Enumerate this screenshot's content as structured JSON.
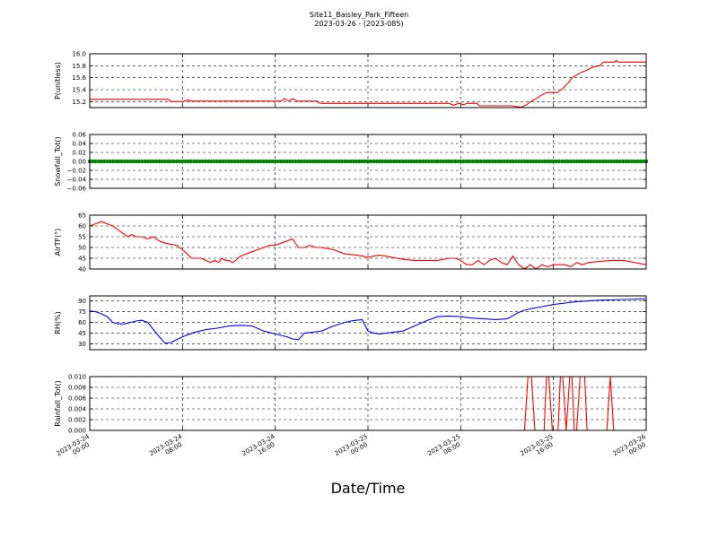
{
  "chart_data": {
    "title": "Site11_Baisley_Park_Fifteen",
    "subtitle": "2023-03-26 - (2023-085)",
    "xlabel": "Date/Time",
    "type": "line",
    "x_range": [
      "2023-03-24 00:00",
      "2023-03-26 00:00"
    ],
    "x_ticks": [
      {
        "line1": "2023-03-24",
        "line2": "00:00"
      },
      {
        "line1": "2023-03-24",
        "line2": "08:00"
      },
      {
        "line1": "2023-03-24",
        "line2": "16:00"
      },
      {
        "line1": "2023-03-25",
        "line2": "00:00"
      },
      {
        "line1": "2023-03-25",
        "line2": "08:00"
      },
      {
        "line1": "2023-03-25",
        "line2": "16:00"
      },
      {
        "line1": "2023-03-26",
        "line2": "00:00"
      }
    ],
    "x_tick_hours": [
      0,
      8,
      16,
      24,
      32,
      40,
      48
    ],
    "grid": true,
    "panels": [
      {
        "ylabel": "P(unitless)",
        "ylim": [
          15.1,
          16.0
        ],
        "yticks": [
          15.2,
          15.4,
          15.6,
          15.8,
          16.0
        ],
        "yticklabels": [
          "15.2",
          "15.4",
          "15.6",
          "15.8",
          "16.0"
        ],
        "color": "#ff0000",
        "markers": false,
        "x": [
          0,
          6.8,
          7.0,
          8.0,
          8.5,
          8.6,
          9.0,
          13.3,
          16.5,
          16.8,
          17.2,
          17.5,
          17.9,
          18.4,
          19.6,
          19.7,
          20.0,
          24.0,
          31.0,
          31.4,
          31.8,
          32.3,
          32.5,
          32.9,
          33.4,
          33.6,
          36.4,
          37.1,
          37.3,
          37.6,
          37.9,
          38.2,
          38.6,
          38.8,
          39.1,
          39.4,
          39.8,
          40.3,
          40.8,
          41.3,
          41.6,
          42.3,
          42.8,
          43.1,
          43.4,
          44.0,
          44.3,
          44.8,
          45.3,
          45.4,
          45.6,
          46.8,
          48.0
        ],
        "values": [
          15.24,
          15.24,
          15.2,
          15.2,
          15.23,
          15.21,
          15.21,
          15.21,
          15.21,
          15.25,
          15.21,
          15.25,
          15.21,
          15.21,
          15.21,
          15.18,
          15.17,
          15.17,
          15.17,
          15.14,
          15.17,
          15.15,
          15.17,
          15.17,
          15.17,
          15.13,
          15.13,
          15.11,
          15.11,
          15.14,
          15.18,
          15.22,
          15.26,
          15.29,
          15.32,
          15.35,
          15.35,
          15.35,
          15.42,
          15.52,
          15.6,
          15.68,
          15.72,
          15.75,
          15.78,
          15.8,
          15.86,
          15.86,
          15.86,
          15.89,
          15.86,
          15.86,
          15.86
        ]
      },
      {
        "ylabel": "Snowfall_Tot()",
        "ylim": [
          -0.06,
          0.06
        ],
        "yticks": [
          -0.06,
          -0.04,
          -0.02,
          0.0,
          0.02,
          0.04,
          0.06
        ],
        "yticklabels": [
          "−0.06",
          "−0.04",
          "−0.02",
          "0.00",
          "0.02",
          "0.04",
          "0.06"
        ],
        "color": "#008000",
        "markers": true,
        "x": [
          0,
          48
        ],
        "values": [
          0,
          0
        ]
      },
      {
        "ylabel": "AirTF(°)",
        "ylim": [
          40,
          65
        ],
        "yticks": [
          40,
          45,
          50,
          55,
          60,
          65
        ],
        "yticklabels": [
          "40",
          "45",
          "50",
          "55",
          "60",
          "65"
        ],
        "color": "#ff0000",
        "markers": false,
        "x": [
          0,
          0.5,
          1.0,
          1.5,
          2.0,
          2.5,
          3.0,
          3.3,
          3.6,
          4.0,
          4.5,
          5.0,
          5.5,
          6.0,
          6.5,
          7.0,
          7.5,
          8.0,
          8.4,
          8.8,
          9.2,
          9.6,
          10.0,
          10.4,
          10.8,
          11.1,
          11.4,
          11.7,
          12.0,
          12.3,
          12.6,
          13.0,
          13.5,
          14.0,
          14.5,
          15.0,
          15.5,
          16.0,
          16.5,
          17.0,
          17.5,
          18.0,
          18.5,
          19.0,
          19.5,
          20.0,
          21.0,
          22.0,
          23.0,
          24.0,
          25.0,
          26.0,
          27.0,
          28.0,
          29.0,
          30.0,
          31.0,
          31.5,
          32.0,
          32.5,
          33.0,
          33.5,
          34.0,
          34.5,
          35.0,
          35.5,
          36.0,
          36.5,
          37.0,
          37.5,
          38.0,
          38.5,
          39.0,
          39.5,
          40.0,
          40.5,
          41.0,
          41.5,
          42.0,
          42.5,
          43.0,
          44.0,
          45.0,
          46.0,
          47.0,
          48.0
        ],
        "values": [
          60,
          61,
          62,
          61,
          60,
          58,
          56,
          55,
          56,
          55,
          55,
          54,
          55,
          53,
          52,
          51.5,
          51,
          49,
          47,
          45,
          45,
          45,
          44,
          43,
          44,
          43,
          45,
          44,
          44,
          43,
          44,
          46,
          47,
          48,
          49,
          50,
          51,
          51,
          52,
          53,
          54,
          50,
          50,
          51,
          50,
          50,
          49,
          47,
          46.5,
          45.5,
          46.5,
          45.5,
          44.5,
          44,
          44,
          44,
          45,
          45,
          44,
          42,
          42,
          44,
          42,
          44,
          45,
          43,
          42,
          46,
          42,
          40,
          42,
          40,
          42,
          41,
          42,
          42,
          42,
          41,
          43,
          42,
          43,
          43.5,
          44,
          44,
          43,
          42
        ]
      },
      {
        "ylabel": "RH(%)",
        "ylim": [
          22,
          97
        ],
        "yticks": [
          30,
          45,
          60,
          75,
          90
        ],
        "yticklabels": [
          "30",
          "45",
          "60",
          "75",
          "90"
        ],
        "color": "#0000ff",
        "markers": false,
        "x": [
          0,
          0.5,
          1.0,
          1.5,
          2.0,
          2.5,
          3.0,
          3.5,
          4.0,
          4.5,
          5.0,
          5.5,
          6.0,
          6.5,
          7.0,
          7.5,
          8.0,
          8.5,
          9.0,
          9.5,
          10.0,
          11.0,
          12.0,
          13.0,
          14.0,
          15.0,
          16.0,
          16.5,
          17.0,
          17.5,
          18.0,
          18.5,
          19.0,
          19.5,
          20.0,
          21.0,
          22.0,
          22.5,
          23.0,
          23.5,
          24.0,
          24.5,
          25.0,
          26.0,
          27.0,
          28.0,
          29.0,
          30.0,
          31.0,
          32.0,
          33.0,
          34.0,
          35.0,
          36.0,
          37.0,
          37.5,
          38.0,
          39.0,
          40.0,
          41.0,
          42.0,
          44.0,
          46.0,
          48.0
        ],
        "values": [
          76,
          75,
          72,
          68,
          60,
          58,
          58,
          60,
          62,
          63,
          60,
          50,
          40,
          31,
          32,
          36,
          40,
          43,
          46,
          48,
          50,
          52,
          55,
          56,
          55,
          48,
          44,
          42,
          40,
          37,
          36,
          45,
          46,
          47,
          48,
          55,
          60,
          62,
          63,
          64,
          48,
          45,
          44,
          46,
          48,
          55,
          62,
          68,
          69,
          68,
          66,
          65,
          64,
          65,
          74,
          77,
          79,
          82,
          85,
          87,
          89,
          91,
          92,
          93
        ]
      },
      {
        "ylabel": "Rainfall_Tot()",
        "ylim": [
          0.0,
          0.01
        ],
        "yticks": [
          0.0,
          0.002,
          0.004,
          0.006,
          0.008,
          0.01
        ],
        "yticklabels": [
          "0.000",
          "0.002",
          "0.004",
          "0.006",
          "0.008",
          "0.010"
        ],
        "color": "#ff0000",
        "markers": false,
        "x": [
          0,
          37.5,
          37.8,
          38.1,
          38.4,
          39.2,
          39.4,
          39.6,
          39.9,
          40.4,
          40.6,
          40.8,
          41.1,
          41.4,
          41.6,
          41.8,
          42.0,
          42.3,
          42.7,
          42.9,
          43.1,
          44.6,
          44.9,
          45.2,
          48.0
        ],
        "values": [
          0,
          0,
          0.01,
          0.01,
          0,
          0,
          0.01,
          0.01,
          0,
          0,
          0.01,
          0.01,
          0,
          0.01,
          0.01,
          0,
          0,
          0.01,
          0.01,
          0,
          0,
          0,
          0.01,
          0,
          0
        ]
      }
    ]
  }
}
